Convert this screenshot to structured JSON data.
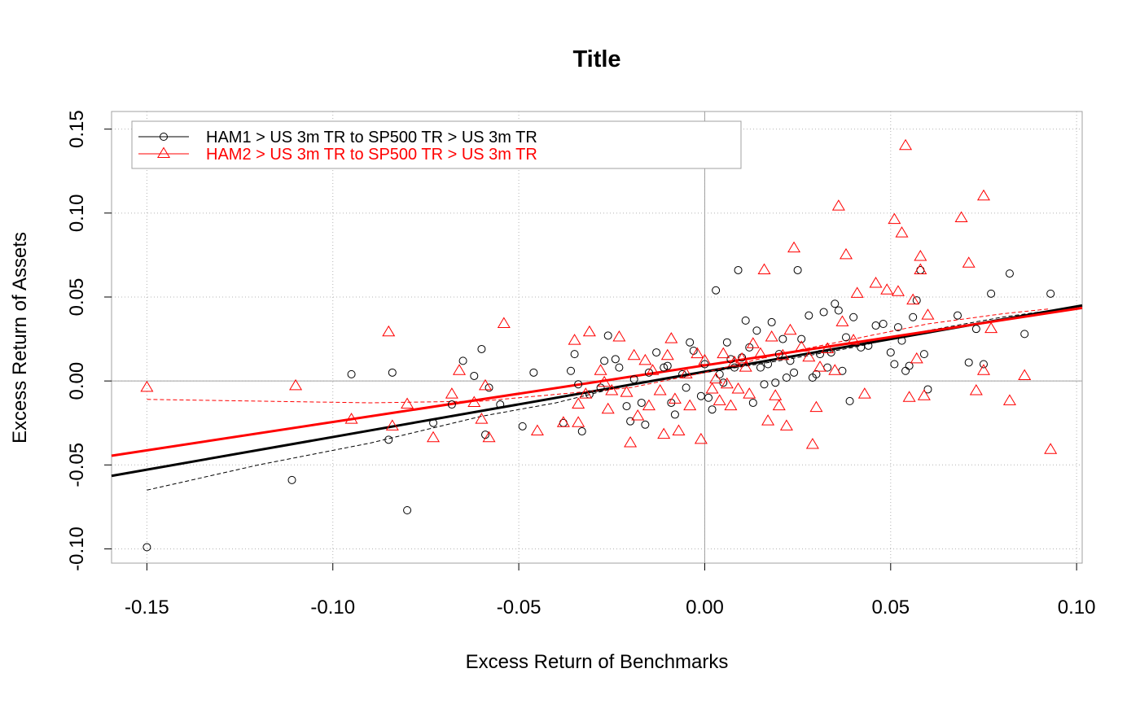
{
  "chart_data": {
    "type": "scatter",
    "title": "Title",
    "xlabel": "Excess Return of Benchmarks",
    "ylabel": "Excess Return of Assets",
    "xlim": [
      -0.1595,
      0.1015
    ],
    "ylim": [
      -0.1085,
      0.1605
    ],
    "x_ticks": [
      -0.15,
      -0.1,
      -0.05,
      0.0,
      0.05,
      0.1
    ],
    "x_tick_labels": [
      "-0.15",
      "-0.10",
      "-0.05",
      "0.00",
      "0.05",
      "0.10"
    ],
    "y_ticks": [
      -0.1,
      -0.05,
      0.0,
      0.05,
      0.1,
      0.15
    ],
    "y_tick_labels": [
      "-0.10",
      "-0.05",
      "0.00",
      "0.05",
      "0.10",
      "0.15"
    ],
    "grid": true,
    "legend_position": "top-left",
    "series": [
      {
        "name": "HAM1 > US 3m TR to SP500 TR > US 3m TR",
        "color": "#000000",
        "marker": "circle",
        "points": [
          [
            -0.15,
            -0.099
          ],
          [
            -0.111,
            -0.059
          ],
          [
            -0.095,
            0.004
          ],
          [
            -0.085,
            -0.035
          ],
          [
            -0.084,
            0.005
          ],
          [
            -0.08,
            -0.077
          ],
          [
            -0.073,
            -0.025
          ],
          [
            -0.068,
            -0.014
          ],
          [
            -0.065,
            0.012
          ],
          [
            -0.062,
            0.003
          ],
          [
            -0.06,
            0.019
          ],
          [
            -0.059,
            -0.032
          ],
          [
            -0.058,
            -0.004
          ],
          [
            -0.055,
            -0.014
          ],
          [
            -0.049,
            -0.027
          ],
          [
            -0.046,
            0.005
          ],
          [
            -0.038,
            -0.025
          ],
          [
            -0.036,
            0.006
          ],
          [
            -0.035,
            0.016
          ],
          [
            -0.034,
            -0.002
          ],
          [
            -0.033,
            -0.03
          ],
          [
            -0.031,
            -0.008
          ],
          [
            -0.028,
            -0.004
          ],
          [
            -0.027,
            0.012
          ],
          [
            -0.026,
            0.027
          ],
          [
            -0.024,
            0.013
          ],
          [
            -0.023,
            0.008
          ],
          [
            -0.021,
            -0.015
          ],
          [
            -0.02,
            -0.024
          ],
          [
            -0.019,
            0.001
          ],
          [
            -0.017,
            -0.013
          ],
          [
            -0.016,
            -0.026
          ],
          [
            -0.015,
            0.005
          ],
          [
            -0.013,
            0.017
          ],
          [
            -0.011,
            0.008
          ],
          [
            -0.01,
            0.009
          ],
          [
            -0.009,
            -0.013
          ],
          [
            -0.008,
            -0.02
          ],
          [
            -0.006,
            0.004
          ],
          [
            -0.005,
            -0.004
          ],
          [
            -0.004,
            0.023
          ],
          [
            -0.003,
            0.018
          ],
          [
            -0.001,
            -0.009
          ],
          [
            0.0,
            0.01
          ],
          [
            0.001,
            -0.01
          ],
          [
            0.002,
            -0.017
          ],
          [
            0.003,
            0.054
          ],
          [
            0.004,
            0.004
          ],
          [
            0.005,
            -0.001
          ],
          [
            0.006,
            0.023
          ],
          [
            0.007,
            0.013
          ],
          [
            0.008,
            0.008
          ],
          [
            0.009,
            0.066
          ],
          [
            0.01,
            0.014
          ],
          [
            0.011,
            0.036
          ],
          [
            0.012,
            0.02
          ],
          [
            0.013,
            -0.013
          ],
          [
            0.014,
            0.03
          ],
          [
            0.015,
            0.008
          ],
          [
            0.016,
            -0.002
          ],
          [
            0.017,
            0.01
          ],
          [
            0.018,
            0.035
          ],
          [
            0.019,
            -0.001
          ],
          [
            0.02,
            0.016
          ],
          [
            0.021,
            0.025
          ],
          [
            0.022,
            0.002
          ],
          [
            0.023,
            0.012
          ],
          [
            0.024,
            0.005
          ],
          [
            0.025,
            0.066
          ],
          [
            0.026,
            0.025
          ],
          [
            0.028,
            0.039
          ],
          [
            0.029,
            0.002
          ],
          [
            0.03,
            0.004
          ],
          [
            0.031,
            0.016
          ],
          [
            0.032,
            0.041
          ],
          [
            0.033,
            0.008
          ],
          [
            0.034,
            0.017
          ],
          [
            0.035,
            0.046
          ],
          [
            0.036,
            0.042
          ],
          [
            0.037,
            0.006
          ],
          [
            0.038,
            0.026
          ],
          [
            0.039,
            -0.012
          ],
          [
            0.04,
            0.038
          ],
          [
            0.042,
            0.02
          ],
          [
            0.044,
            0.021
          ],
          [
            0.046,
            0.033
          ],
          [
            0.048,
            0.034
          ],
          [
            0.05,
            0.017
          ],
          [
            0.051,
            0.01
          ],
          [
            0.052,
            0.032
          ],
          [
            0.053,
            0.024
          ],
          [
            0.054,
            0.006
          ],
          [
            0.055,
            0.009
          ],
          [
            0.056,
            0.038
          ],
          [
            0.057,
            0.048
          ],
          [
            0.058,
            0.066
          ],
          [
            0.059,
            0.016
          ],
          [
            0.06,
            -0.005
          ],
          [
            0.068,
            0.039
          ],
          [
            0.071,
            0.011
          ],
          [
            0.073,
            0.031
          ],
          [
            0.075,
            0.01
          ],
          [
            0.077,
            0.052
          ],
          [
            0.082,
            0.064
          ],
          [
            0.086,
            0.028
          ],
          [
            0.093,
            0.052
          ]
        ],
        "fit_line": [
          [
            -0.1595,
            -0.0565
          ],
          [
            0.1015,
            0.045
          ]
        ],
        "smooth_line": [
          [
            -0.15,
            -0.065
          ],
          [
            -0.12,
            -0.05
          ],
          [
            -0.09,
            -0.037
          ],
          [
            -0.06,
            -0.021
          ],
          [
            -0.04,
            -0.013
          ],
          [
            -0.02,
            -0.002
          ],
          [
            0.0,
            0.005
          ],
          [
            0.02,
            0.012
          ],
          [
            0.04,
            0.02
          ],
          [
            0.06,
            0.03
          ],
          [
            0.08,
            0.038
          ],
          [
            0.093,
            0.042
          ]
        ]
      },
      {
        "name": "HAM2 > US 3m TR to SP500 TR > US 3m TR",
        "color": "#ff0000",
        "marker": "triangle",
        "points": [
          [
            -0.15,
            -0.004
          ],
          [
            -0.11,
            -0.003
          ],
          [
            -0.095,
            -0.023
          ],
          [
            -0.085,
            0.029
          ],
          [
            -0.084,
            -0.027
          ],
          [
            -0.08,
            -0.014
          ],
          [
            -0.073,
            -0.034
          ],
          [
            -0.068,
            -0.008
          ],
          [
            -0.066,
            0.006
          ],
          [
            -0.062,
            -0.013
          ],
          [
            -0.06,
            -0.023
          ],
          [
            -0.059,
            -0.003
          ],
          [
            -0.058,
            -0.034
          ],
          [
            -0.054,
            0.034
          ],
          [
            -0.045,
            -0.03
          ],
          [
            -0.038,
            -0.025
          ],
          [
            -0.035,
            0.024
          ],
          [
            -0.034,
            -0.014
          ],
          [
            -0.034,
            -0.025
          ],
          [
            -0.032,
            -0.008
          ],
          [
            -0.031,
            0.029
          ],
          [
            -0.028,
            0.006
          ],
          [
            -0.027,
            -0.001
          ],
          [
            -0.026,
            -0.017
          ],
          [
            -0.025,
            -0.006
          ],
          [
            -0.023,
            0.026
          ],
          [
            -0.021,
            -0.007
          ],
          [
            -0.02,
            -0.037
          ],
          [
            -0.019,
            0.015
          ],
          [
            -0.018,
            -0.021
          ],
          [
            -0.016,
            0.012
          ],
          [
            -0.015,
            -0.015
          ],
          [
            -0.014,
            0.006
          ],
          [
            -0.012,
            -0.006
          ],
          [
            -0.011,
            -0.032
          ],
          [
            -0.01,
            0.015
          ],
          [
            -0.009,
            0.025
          ],
          [
            -0.008,
            -0.011
          ],
          [
            -0.007,
            -0.03
          ],
          [
            -0.005,
            0.004
          ],
          [
            -0.004,
            -0.015
          ],
          [
            -0.002,
            0.016
          ],
          [
            -0.001,
            -0.035
          ],
          [
            0.0,
            0.012
          ],
          [
            0.002,
            -0.005
          ],
          [
            0.003,
            0.001
          ],
          [
            0.004,
            -0.012
          ],
          [
            0.005,
            0.016
          ],
          [
            0.006,
            -0.002
          ],
          [
            0.007,
            -0.015
          ],
          [
            0.008,
            0.011
          ],
          [
            0.009,
            -0.005
          ],
          [
            0.01,
            0.013
          ],
          [
            0.011,
            0.008
          ],
          [
            0.012,
            -0.008
          ],
          [
            0.013,
            0.022
          ],
          [
            0.015,
            0.016
          ],
          [
            0.016,
            0.066
          ],
          [
            0.017,
            -0.024
          ],
          [
            0.018,
            0.026
          ],
          [
            0.019,
            -0.009
          ],
          [
            0.02,
            -0.015
          ],
          [
            0.021,
            0.015
          ],
          [
            0.022,
            -0.027
          ],
          [
            0.023,
            0.03
          ],
          [
            0.024,
            0.079
          ],
          [
            0.026,
            0.02
          ],
          [
            0.028,
            0.014
          ],
          [
            0.029,
            -0.038
          ],
          [
            0.03,
            -0.016
          ],
          [
            0.031,
            0.008
          ],
          [
            0.033,
            0.019
          ],
          [
            0.035,
            0.006
          ],
          [
            0.036,
            0.104
          ],
          [
            0.037,
            0.035
          ],
          [
            0.038,
            0.075
          ],
          [
            0.04,
            0.024
          ],
          [
            0.041,
            0.052
          ],
          [
            0.043,
            -0.008
          ],
          [
            0.046,
            0.058
          ],
          [
            0.049,
            0.054
          ],
          [
            0.051,
            0.096
          ],
          [
            0.052,
            0.053
          ],
          [
            0.053,
            0.088
          ],
          [
            0.054,
            0.14
          ],
          [
            0.055,
            -0.01
          ],
          [
            0.056,
            0.048
          ],
          [
            0.057,
            0.013
          ],
          [
            0.058,
            0.066
          ],
          [
            0.058,
            0.074
          ],
          [
            0.059,
            -0.009
          ],
          [
            0.06,
            0.039
          ],
          [
            0.069,
            0.097
          ],
          [
            0.071,
            0.07
          ],
          [
            0.073,
            -0.006
          ],
          [
            0.075,
            0.11
          ],
          [
            0.075,
            0.006
          ],
          [
            0.077,
            0.031
          ],
          [
            0.082,
            -0.012
          ],
          [
            0.086,
            0.003
          ],
          [
            0.093,
            -0.041
          ]
        ],
        "fit_line": [
          [
            -0.1595,
            -0.0445
          ],
          [
            0.1015,
            0.0435
          ]
        ],
        "smooth_line": [
          [
            -0.15,
            -0.011
          ],
          [
            -0.12,
            -0.012
          ],
          [
            -0.09,
            -0.013
          ],
          [
            -0.06,
            -0.012
          ],
          [
            -0.04,
            -0.008
          ],
          [
            -0.02,
            -0.004
          ],
          [
            0.0,
            0.005
          ],
          [
            0.02,
            0.016
          ],
          [
            0.04,
            0.025
          ],
          [
            0.06,
            0.034
          ],
          [
            0.08,
            0.04
          ],
          [
            0.093,
            0.043
          ]
        ]
      }
    ]
  }
}
